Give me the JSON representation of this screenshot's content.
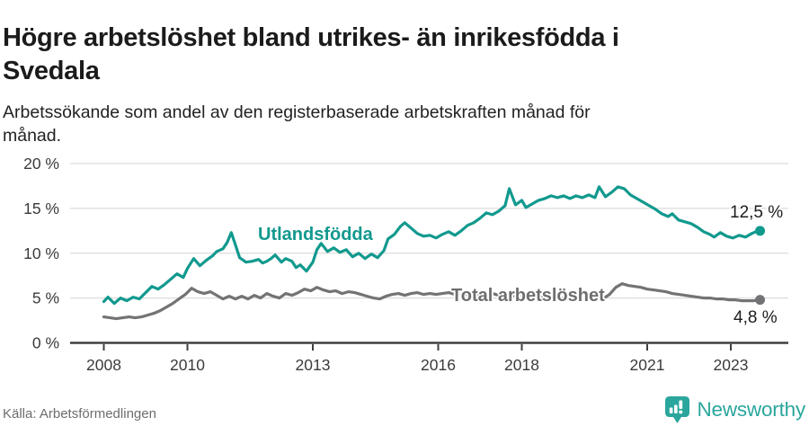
{
  "header": {
    "title_lines": [
      "Högre arbetslöshet bland utrikes- än inrikesfödda i",
      "Svedala"
    ],
    "subtitle_lines": [
      "Arbetssökande som andel av den registerbaserade arbetskraften månad för",
      "månad."
    ]
  },
  "chart_data": {
    "type": "line",
    "title": "Högre arbetslöshet bland utrikes- än inrikesfödda i Svedala",
    "subtitle": "Arbetssökande som andel av den registerbaserade arbetskraften månad för månad.",
    "grid": "horizontal",
    "legend_position": "inline-labels",
    "x_axis": {
      "ticks": [
        "2008",
        "2010",
        "2013",
        "2016",
        "2018",
        "2021",
        "2023"
      ],
      "tick_years": [
        2008,
        2010,
        2013,
        2016,
        2018,
        2021,
        2023
      ],
      "range": [
        2008.0,
        2023.7
      ]
    },
    "y_axis": {
      "ticks": [
        "0 %",
        "5 %",
        "10 %",
        "15 %",
        "20 %"
      ],
      "tick_values": [
        0,
        5,
        10,
        15,
        20
      ],
      "range": [
        0,
        20
      ],
      "unit": "%"
    },
    "series": [
      {
        "name": "Utlandsfödda",
        "color": "#12998E",
        "end_label": "12,5 %",
        "end_value": 12.5,
        "points": [
          [
            2008.0,
            4.6
          ],
          [
            2008.1,
            5.1
          ],
          [
            2008.25,
            4.4
          ],
          [
            2008.4,
            5.0
          ],
          [
            2008.55,
            4.7
          ],
          [
            2008.7,
            5.1
          ],
          [
            2008.85,
            4.9
          ],
          [
            2009.0,
            5.6
          ],
          [
            2009.15,
            6.3
          ],
          [
            2009.3,
            6.0
          ],
          [
            2009.45,
            6.5
          ],
          [
            2009.6,
            7.1
          ],
          [
            2009.75,
            7.7
          ],
          [
            2009.9,
            7.3
          ],
          [
            2010.0,
            8.3
          ],
          [
            2010.15,
            9.4
          ],
          [
            2010.3,
            8.6
          ],
          [
            2010.45,
            9.2
          ],
          [
            2010.6,
            9.7
          ],
          [
            2010.7,
            10.2
          ],
          [
            2010.85,
            10.5
          ],
          [
            2010.95,
            11.2
          ],
          [
            2011.05,
            12.3
          ],
          [
            2011.15,
            10.9
          ],
          [
            2011.25,
            9.5
          ],
          [
            2011.4,
            9.0
          ],
          [
            2011.55,
            9.1
          ],
          [
            2011.7,
            9.3
          ],
          [
            2011.8,
            8.9
          ],
          [
            2011.9,
            9.1
          ],
          [
            2012.0,
            9.4
          ],
          [
            2012.1,
            9.8
          ],
          [
            2012.25,
            9.0
          ],
          [
            2012.35,
            9.4
          ],
          [
            2012.5,
            9.1
          ],
          [
            2012.6,
            8.4
          ],
          [
            2012.7,
            8.7
          ],
          [
            2012.85,
            8.0
          ],
          [
            2013.0,
            9.0
          ],
          [
            2013.1,
            10.4
          ],
          [
            2013.2,
            11.1
          ],
          [
            2013.35,
            10.2
          ],
          [
            2013.5,
            10.6
          ],
          [
            2013.65,
            10.1
          ],
          [
            2013.8,
            10.4
          ],
          [
            2013.95,
            9.6
          ],
          [
            2014.1,
            10.0
          ],
          [
            2014.25,
            9.4
          ],
          [
            2014.4,
            9.9
          ],
          [
            2014.55,
            9.5
          ],
          [
            2014.7,
            10.3
          ],
          [
            2014.8,
            11.6
          ],
          [
            2014.95,
            12.1
          ],
          [
            2015.1,
            13.0
          ],
          [
            2015.2,
            13.4
          ],
          [
            2015.35,
            12.8
          ],
          [
            2015.5,
            12.2
          ],
          [
            2015.65,
            11.9
          ],
          [
            2015.8,
            12.0
          ],
          [
            2015.95,
            11.7
          ],
          [
            2016.1,
            12.1
          ],
          [
            2016.25,
            12.4
          ],
          [
            2016.4,
            12.0
          ],
          [
            2016.55,
            12.5
          ],
          [
            2016.7,
            13.1
          ],
          [
            2016.85,
            13.4
          ],
          [
            2017.0,
            13.9
          ],
          [
            2017.15,
            14.5
          ],
          [
            2017.3,
            14.3
          ],
          [
            2017.45,
            14.7
          ],
          [
            2017.6,
            15.3
          ],
          [
            2017.7,
            17.2
          ],
          [
            2017.85,
            15.4
          ],
          [
            2018.0,
            15.9
          ],
          [
            2018.1,
            15.1
          ],
          [
            2018.25,
            15.5
          ],
          [
            2018.4,
            15.9
          ],
          [
            2018.55,
            16.1
          ],
          [
            2018.7,
            16.4
          ],
          [
            2018.85,
            16.2
          ],
          [
            2019.0,
            16.4
          ],
          [
            2019.15,
            16.1
          ],
          [
            2019.3,
            16.4
          ],
          [
            2019.45,
            16.2
          ],
          [
            2019.6,
            16.5
          ],
          [
            2019.75,
            16.2
          ],
          [
            2019.85,
            17.4
          ],
          [
            2020.0,
            16.3
          ],
          [
            2020.15,
            16.8
          ],
          [
            2020.3,
            17.4
          ],
          [
            2020.45,
            17.2
          ],
          [
            2020.6,
            16.5
          ],
          [
            2020.75,
            16.1
          ],
          [
            2020.9,
            15.7
          ],
          [
            2021.05,
            15.3
          ],
          [
            2021.2,
            14.9
          ],
          [
            2021.35,
            14.4
          ],
          [
            2021.5,
            14.1
          ],
          [
            2021.6,
            14.4
          ],
          [
            2021.75,
            13.7
          ],
          [
            2021.9,
            13.5
          ],
          [
            2022.05,
            13.3
          ],
          [
            2022.2,
            12.9
          ],
          [
            2022.35,
            12.4
          ],
          [
            2022.5,
            12.1
          ],
          [
            2022.6,
            11.8
          ],
          [
            2022.75,
            12.3
          ],
          [
            2022.9,
            11.9
          ],
          [
            2023.05,
            11.7
          ],
          [
            2023.2,
            12.0
          ],
          [
            2023.35,
            11.8
          ],
          [
            2023.5,
            12.2
          ],
          [
            2023.6,
            12.4
          ],
          [
            2023.7,
            12.5
          ]
        ]
      },
      {
        "name": "Total arbetslöshet",
        "color": "#737376",
        "end_label": "4,8 %",
        "end_value": 4.8,
        "points": [
          [
            2008.0,
            2.9
          ],
          [
            2008.15,
            2.8
          ],
          [
            2008.3,
            2.7
          ],
          [
            2008.45,
            2.8
          ],
          [
            2008.6,
            2.9
          ],
          [
            2008.75,
            2.8
          ],
          [
            2008.9,
            2.9
          ],
          [
            2009.05,
            3.1
          ],
          [
            2009.2,
            3.3
          ],
          [
            2009.35,
            3.6
          ],
          [
            2009.5,
            4.0
          ],
          [
            2009.65,
            4.4
          ],
          [
            2009.8,
            4.9
          ],
          [
            2009.95,
            5.4
          ],
          [
            2010.1,
            6.1
          ],
          [
            2010.25,
            5.7
          ],
          [
            2010.4,
            5.5
          ],
          [
            2010.55,
            5.7
          ],
          [
            2010.7,
            5.3
          ],
          [
            2010.85,
            4.9
          ],
          [
            2011.0,
            5.2
          ],
          [
            2011.15,
            4.9
          ],
          [
            2011.3,
            5.2
          ],
          [
            2011.45,
            4.9
          ],
          [
            2011.6,
            5.3
          ],
          [
            2011.75,
            5.0
          ],
          [
            2011.9,
            5.5
          ],
          [
            2012.05,
            5.2
          ],
          [
            2012.2,
            5.0
          ],
          [
            2012.35,
            5.5
          ],
          [
            2012.5,
            5.3
          ],
          [
            2012.65,
            5.6
          ],
          [
            2012.8,
            6.0
          ],
          [
            2012.95,
            5.8
          ],
          [
            2013.1,
            6.2
          ],
          [
            2013.25,
            5.9
          ],
          [
            2013.4,
            5.7
          ],
          [
            2013.55,
            5.8
          ],
          [
            2013.7,
            5.5
          ],
          [
            2013.85,
            5.7
          ],
          [
            2014.0,
            5.6
          ],
          [
            2014.15,
            5.4
          ],
          [
            2014.3,
            5.2
          ],
          [
            2014.45,
            5.0
          ],
          [
            2014.6,
            4.9
          ],
          [
            2014.75,
            5.2
          ],
          [
            2014.9,
            5.4
          ],
          [
            2015.05,
            5.5
          ],
          [
            2015.2,
            5.3
          ],
          [
            2015.35,
            5.5
          ],
          [
            2015.5,
            5.6
          ],
          [
            2015.65,
            5.4
          ],
          [
            2015.8,
            5.5
          ],
          [
            2015.95,
            5.4
          ],
          [
            2016.1,
            5.5
          ],
          [
            2016.25,
            5.6
          ],
          [
            2016.4,
            5.4
          ],
          [
            2016.55,
            5.3
          ],
          [
            2016.7,
            5.4
          ],
          [
            2016.85,
            5.3
          ],
          [
            2017.0,
            5.5
          ],
          [
            2017.15,
            5.4
          ],
          [
            2017.3,
            5.5
          ],
          [
            2017.45,
            5.3
          ],
          [
            2017.6,
            5.4
          ],
          [
            2017.75,
            5.2
          ],
          [
            2017.9,
            5.3
          ],
          [
            2018.05,
            5.2
          ],
          [
            2018.2,
            5.3
          ],
          [
            2018.35,
            5.1
          ],
          [
            2018.5,
            5.2
          ],
          [
            2018.65,
            5.0
          ],
          [
            2018.8,
            4.9
          ],
          [
            2018.95,
            5.0
          ],
          [
            2019.1,
            4.9
          ],
          [
            2019.25,
            5.0
          ],
          [
            2019.4,
            4.9
          ],
          [
            2019.55,
            4.9
          ],
          [
            2019.7,
            5.0
          ],
          [
            2019.85,
            5.0
          ],
          [
            2020.0,
            5.1
          ],
          [
            2020.1,
            5.4
          ],
          [
            2020.25,
            6.2
          ],
          [
            2020.4,
            6.6
          ],
          [
            2020.55,
            6.4
          ],
          [
            2020.7,
            6.3
          ],
          [
            2020.85,
            6.2
          ],
          [
            2021.0,
            6.0
          ],
          [
            2021.15,
            5.9
          ],
          [
            2021.3,
            5.8
          ],
          [
            2021.45,
            5.7
          ],
          [
            2021.6,
            5.5
          ],
          [
            2021.75,
            5.4
          ],
          [
            2021.9,
            5.3
          ],
          [
            2022.05,
            5.2
          ],
          [
            2022.2,
            5.1
          ],
          [
            2022.35,
            5.0
          ],
          [
            2022.5,
            5.0
          ],
          [
            2022.65,
            4.9
          ],
          [
            2022.8,
            4.9
          ],
          [
            2022.95,
            4.8
          ],
          [
            2023.1,
            4.8
          ],
          [
            2023.25,
            4.7
          ],
          [
            2023.4,
            4.7
          ],
          [
            2023.55,
            4.7
          ],
          [
            2023.7,
            4.8
          ]
        ]
      }
    ]
  },
  "footer": {
    "source": "Källa: Arbetsförmedlingen",
    "logo_text": "Newsworthy"
  },
  "colors": {
    "accent_teal": "#12998E",
    "series_gray": "#737376",
    "gridline": "#dcdcdc",
    "axis": "#3f3f40",
    "logo_teal": "#2BA69D",
    "title_text": "#1b1b1b",
    "muted_text": "#6d6d6d"
  }
}
